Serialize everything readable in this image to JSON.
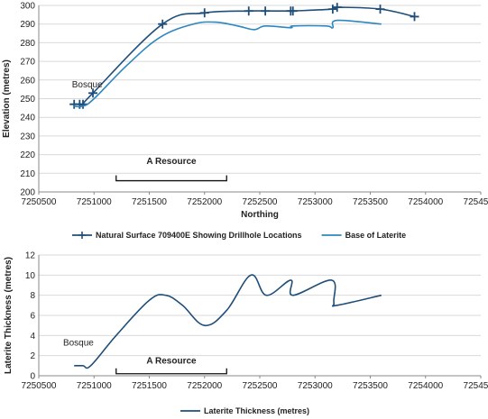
{
  "colors": {
    "surface": "#1f4e79",
    "laterite": "#2e86c1",
    "thickness": "#1f4e79",
    "grid": "#d9d9d9",
    "axis": "#888888"
  },
  "chart_data": [
    {
      "type": "line",
      "xlabel": "Northing",
      "ylabel": "Elevation (metres)",
      "xlim": [
        7250500,
        7254500
      ],
      "ylim": [
        200,
        300
      ],
      "xticks": [
        7250500,
        7251000,
        7251500,
        7252000,
        7252500,
        7253000,
        7253500,
        7254000,
        7254500
      ],
      "xtick_labels": [
        "7250500",
        "7251000",
        "7251500",
        "7252000",
        "7252500",
        "7253000",
        "7253500",
        "7254000",
        "7254500"
      ],
      "yticks": [
        200,
        210,
        220,
        230,
        240,
        250,
        260,
        270,
        280,
        290,
        300
      ],
      "ytick_labels": [
        "200",
        "210",
        "220",
        "230",
        "240",
        "250",
        "260",
        "270",
        "280",
        "290",
        "300"
      ],
      "grid": "horizontal",
      "legend": "bottom",
      "series": [
        {
          "name": "Natural Surface 709400E Showing Drillhole Locations",
          "marker": "plus",
          "x": [
            7250820,
            7250870,
            7250900,
            7250990,
            7251620,
            7252000,
            7252400,
            7252550,
            7252780,
            7252800,
            7253160,
            7253200,
            7253590,
            7253900
          ],
          "y": [
            247,
            247,
            247,
            253,
            290,
            296,
            297,
            297,
            297,
            297,
            298,
            299,
            298,
            294
          ]
        },
        {
          "name": "Base of Laterite",
          "marker": "none",
          "x": [
            7250820,
            7250900,
            7251000,
            7251300,
            7251600,
            7251900,
            7252100,
            7252300,
            7252450,
            7252550,
            7252780,
            7252800,
            7253100,
            7253160,
            7253200,
            7253600
          ],
          "y": [
            246,
            246,
            250,
            268,
            283,
            290,
            291,
            289,
            287,
            289,
            288,
            289,
            289,
            288,
            292,
            290
          ]
        }
      ],
      "annotations": [
        {
          "text": "Bosque",
          "x": 7250800,
          "y": 256
        },
        {
          "text": "A Resource",
          "x": 7251700,
          "y": 215,
          "bracket_x": [
            7251200,
            7252200
          ],
          "bracket_y": 206
        }
      ]
    },
    {
      "type": "line",
      "xlabel": "",
      "ylabel": "Laterite Thickness (metres)",
      "xlim": [
        7250500,
        7254500
      ],
      "ylim": [
        0,
        12
      ],
      "xticks": [
        7250500,
        7251000,
        7251500,
        7252000,
        7252500,
        7253000,
        7253500,
        7254000,
        7254500
      ],
      "xtick_labels": [
        "7250500",
        "7251000",
        "7251500",
        "7252000",
        "7252500",
        "7253000",
        "7253500",
        "7254000",
        "7254500"
      ],
      "yticks": [
        0,
        2,
        4,
        6,
        8,
        10,
        12
      ],
      "ytick_labels": [
        "0",
        "2",
        "4",
        "6",
        "8",
        "10",
        "12"
      ],
      "grid": "horizontal",
      "legend": "bottom",
      "series": [
        {
          "name": "Laterite Thickness (metres)",
          "marker": "none",
          "x": [
            7250820,
            7250900,
            7250970,
            7251200,
            7251500,
            7251650,
            7251800,
            7252000,
            7252200,
            7252420,
            7252560,
            7252780,
            7252800,
            7253150,
            7253170,
            7253200,
            7253600
          ],
          "y": [
            1,
            1,
            1,
            4,
            7.5,
            8,
            7,
            5,
            6.5,
            10,
            8,
            9.5,
            8,
            9.5,
            7.3,
            7,
            8
          ]
        }
      ],
      "annotations": [
        {
          "text": "Bosque",
          "x": 7250720,
          "y": 3
        },
        {
          "text": "A Resource",
          "x": 7251700,
          "y": 1.2,
          "bracket_x": [
            7251200,
            7252200
          ],
          "bracket_y": 0.2
        }
      ]
    }
  ]
}
